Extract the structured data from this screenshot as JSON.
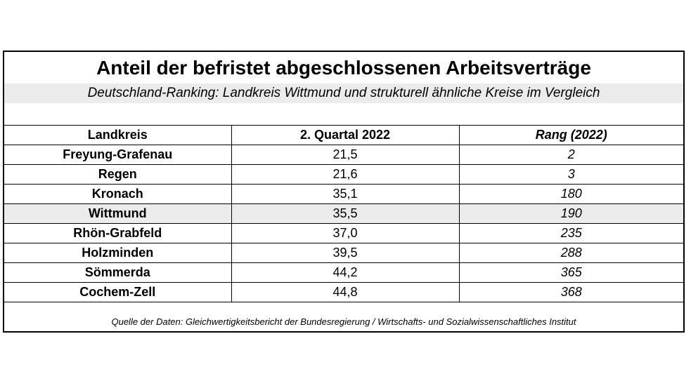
{
  "title": "Anteil der befristet abgeschlossenen Arbeitsverträge",
  "subtitle": "Deutschland-Ranking: Landkreis Wittmund und strukturell ähnliche Kreise im Vergleich",
  "table": {
    "headers": [
      "Landkreis",
      "2. Quartal 2022",
      "Rang (2022)"
    ],
    "rows": [
      {
        "name": "Freyung-Grafenau",
        "value": "21,5",
        "rank": "2"
      },
      {
        "name": "Regen",
        "value": "21,6",
        "rank": "3"
      },
      {
        "name": "Kronach",
        "value": "35,1",
        "rank": "180"
      },
      {
        "name": "Wittmund",
        "value": "35,5",
        "rank": "190"
      },
      {
        "name": "Rhön-Grabfeld",
        "value": "37,0",
        "rank": "235"
      },
      {
        "name": "Holzminden",
        "value": "39,5",
        "rank": "288"
      },
      {
        "name": "Sömmerda",
        "value": "44,2",
        "rank": "365"
      },
      {
        "name": "Cochem-Zell",
        "value": "44,8",
        "rank": "368"
      }
    ],
    "highlight_row": "Wittmund",
    "highlight_color": "#ebebeb"
  },
  "source": "Quelle der Daten: Gleichwertigkeitsbericht der Bundesregierung / Wirtschafts- und Sozialwissenschaftliches Institut"
}
